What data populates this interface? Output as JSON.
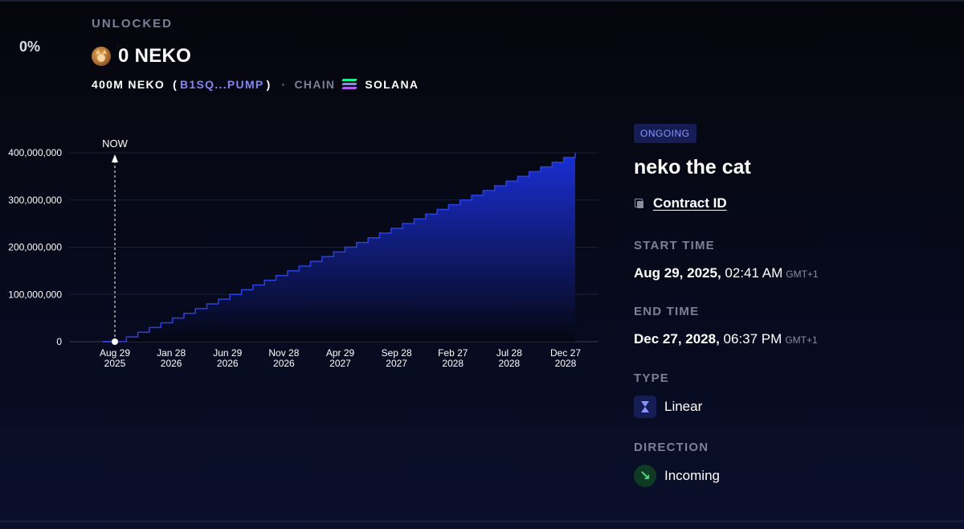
{
  "summary": {
    "percent": "0%",
    "unlocked_label": "UNLOCKED",
    "amount": "0 NEKO",
    "total": "400M NEKO",
    "mint_short": "B1SQ...PUMP",
    "chain_label": "CHAIN",
    "chain": "SOLANA",
    "token_icon": "cat-avatar-icon",
    "chain_icon": "solana-icon"
  },
  "details": {
    "status": "ONGOING",
    "name": "neko the cat",
    "contract_label": "Contract ID",
    "start_label": "START TIME",
    "start_date": "Aug 29, 2025,",
    "start_time": "02:41 AM",
    "start_tz": "GMT+1",
    "end_label": "END TIME",
    "end_date": "Dec 27, 2028,",
    "end_time": "06:37 PM",
    "end_tz": "GMT+1",
    "type_label": "TYPE",
    "type": "Linear",
    "direction_label": "DIRECTION",
    "direction": "Incoming",
    "colors": {
      "accent": "#8a93ff",
      "badge_bg": "#151d54",
      "incoming": "#3fe07b"
    }
  },
  "chart_data": {
    "type": "area",
    "x_tick_labels": [
      [
        "Aug 29",
        "2025"
      ],
      [
        "Jan 28",
        "2026"
      ],
      [
        "Jun 29",
        "2026"
      ],
      [
        "Nov 28",
        "2026"
      ],
      [
        "Apr 29",
        "2027"
      ],
      [
        "Sep 28",
        "2027"
      ],
      [
        "Feb 27",
        "2028"
      ],
      [
        "Jul 28",
        "2028"
      ],
      [
        "Dec 27",
        "2028"
      ]
    ],
    "y_tick_labels": [
      "0",
      "100,000,000",
      "200,000,000",
      "300,000,000",
      "400,000,000"
    ],
    "ylim": [
      0,
      400000000
    ],
    "x_range": [
      "Aug 29 2025",
      "Dec 27 2028"
    ],
    "steps": 40,
    "series": [
      {
        "start_value": 0,
        "end_value": 400000000
      }
    ],
    "now_label": "NOW",
    "now_value": 0,
    "grid": true,
    "colors": {
      "line": "#2a40e0",
      "fill_top": "#1a2fd6",
      "fill_bottom": "#050712"
    }
  }
}
